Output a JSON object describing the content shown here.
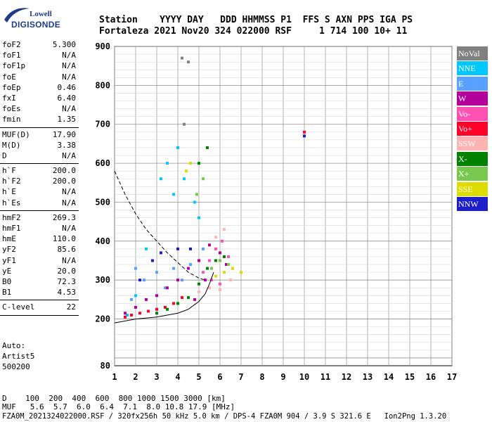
{
  "logo": {
    "line1": "Lowell",
    "line2": "DIGISONDE"
  },
  "header": {
    "row1": "Station    YYYY DAY   DDD HHMMSS P1  FFS S AXN PPS IGA PS",
    "row2": "Fortaleza 2021 Nov20 324 022000 RSF     1 714 100 10+ 11"
  },
  "params": [
    {
      "key": "foF2",
      "value": "5.300"
    },
    {
      "key": "foF1",
      "value": "N/A"
    },
    {
      "key": "foF1p",
      "value": "N/A"
    },
    {
      "key": "foE",
      "value": "N/A"
    },
    {
      "key": "foEp",
      "value": "0.46"
    },
    {
      "key": "fxI",
      "value": "6.40"
    },
    {
      "key": "foEs",
      "value": "N/A"
    },
    {
      "key": "fmin",
      "value": "1.35"
    },
    {
      "key": "MUF(D)",
      "value": "17.90"
    },
    {
      "key": "M(D)",
      "value": "3.38"
    },
    {
      "key": "D",
      "value": "N/A"
    },
    {
      "key": "h`F",
      "value": "200.0"
    },
    {
      "key": "h`F2",
      "value": "200.0"
    },
    {
      "key": "h`E",
      "value": "N/A"
    },
    {
      "key": "h`Es",
      "value": "N/A"
    },
    {
      "key": "hmF2",
      "value": "269.3"
    },
    {
      "key": "hmF1",
      "value": "N/A"
    },
    {
      "key": "hmE",
      "value": "110.0"
    },
    {
      "key": "yF2",
      "value": "85.6"
    },
    {
      "key": "yF1",
      "value": "N/A"
    },
    {
      "key": "yE",
      "value": "20.0"
    },
    {
      "key": "B0",
      "value": "72.3"
    },
    {
      "key": "B1",
      "value": "4.53"
    },
    {
      "key": "C-level",
      "value": "22"
    }
  ],
  "auto": {
    "line1": "Auto:",
    "line2": "Artist5",
    "line3": "500200"
  },
  "bottom": {
    "d_line": "D    100  200  400  600  800 1000 1500 3000 [km]",
    "muf_line": "MUF   5.6  5.7  6.0  6.4  7.1  8.0 10.8 17.9 [MHz]",
    "file_line": "FZA0M_2021324022000.RSF / 320fx256h 50 kHz 5.0 km / DPS-4 FZA0M 904 / 3.9 S 321.6 E   Ion2Png 1.3.20"
  },
  "legend": [
    {
      "label": "NoVal",
      "color": "#808080"
    },
    {
      "label": "NNE",
      "color": "#00c8ff"
    },
    {
      "label": "E",
      "color": "#5aa0ff"
    },
    {
      "label": "W",
      "color": "#b4009b"
    },
    {
      "label": "Vo-",
      "color": "#ff50b4"
    },
    {
      "label": "Vo+",
      "color": "#ff0028"
    },
    {
      "label": "SSW",
      "color": "#ffb4b4"
    },
    {
      "label": "X-",
      "color": "#008200"
    },
    {
      "label": "X+",
      "color": "#78c850"
    },
    {
      "label": "SSE",
      "color": "#dcdc00"
    },
    {
      "label": "NNW",
      "color": "#1e1ec8"
    }
  ],
  "chart_data": {
    "type": "scatter",
    "title": "",
    "xlabel": "",
    "ylabel": "",
    "xlim": [
      1,
      17
    ],
    "ylim": [
      80,
      900
    ],
    "x_ticks": [
      1,
      2,
      3,
      4,
      5,
      6,
      7,
      8,
      9,
      10,
      11,
      12,
      13,
      14,
      15,
      16,
      17
    ],
    "y_ticks": [
      80,
      200,
      300,
      400,
      500,
      600,
      700,
      800,
      900
    ],
    "grid": true,
    "legend_position": "right",
    "series": [
      {
        "name": "NoVal",
        "color": "#808080",
        "points": [
          [
            4.2,
            870
          ],
          [
            4.5,
            860
          ],
          [
            4.3,
            700
          ],
          [
            4.6,
            600
          ]
        ]
      },
      {
        "name": "NNE",
        "color": "#00c8ff",
        "points": [
          [
            3.2,
            560
          ],
          [
            3.5,
            600
          ],
          [
            4.0,
            640
          ],
          [
            4.3,
            560
          ],
          [
            4.8,
            500
          ],
          [
            5.0,
            460
          ],
          [
            3.8,
            520
          ],
          [
            2.5,
            380
          ],
          [
            2.0,
            260
          ],
          [
            1.6,
            210
          ]
        ]
      },
      {
        "name": "E",
        "color": "#5aa0ff",
        "points": [
          [
            2.0,
            330
          ],
          [
            2.4,
            300
          ],
          [
            3.0,
            320
          ],
          [
            3.4,
            280
          ],
          [
            3.8,
            330
          ],
          [
            1.8,
            250
          ],
          [
            4.2,
            300
          ],
          [
            4.6,
            340
          ],
          [
            5.2,
            380
          ]
        ]
      },
      {
        "name": "W",
        "color": "#b4009b",
        "points": [
          [
            1.5,
            215
          ],
          [
            2.0,
            230
          ],
          [
            2.5,
            250
          ],
          [
            3.0,
            260
          ],
          [
            3.5,
            280
          ],
          [
            4.0,
            300
          ],
          [
            4.5,
            330
          ],
          [
            5.0,
            350
          ],
          [
            5.5,
            390
          ],
          [
            6.0,
            370
          ],
          [
            6.3,
            340
          ],
          [
            4.8,
            250
          ],
          [
            5.3,
            300
          ]
        ]
      },
      {
        "name": "Vo-",
        "color": "#ff50b4",
        "points": [
          [
            5.2,
            320
          ],
          [
            5.5,
            350
          ],
          [
            5.8,
            380
          ],
          [
            6.1,
            400
          ],
          [
            6.4,
            360
          ],
          [
            6.6,
            330
          ],
          [
            5.6,
            300
          ],
          [
            6.0,
            290
          ]
        ]
      },
      {
        "name": "Vo+",
        "color": "#ff0028",
        "points": [
          [
            1.5,
            205
          ],
          [
            1.8,
            210
          ],
          [
            2.2,
            215
          ],
          [
            2.6,
            220
          ],
          [
            3.0,
            225
          ],
          [
            3.4,
            230
          ],
          [
            3.8,
            240
          ],
          [
            4.2,
            255
          ],
          [
            10.0,
            680
          ]
        ]
      },
      {
        "name": "SSW",
        "color": "#ffb4b4",
        "points": [
          [
            5.0,
            270
          ],
          [
            5.5,
            280
          ],
          [
            6.0,
            275
          ],
          [
            6.5,
            300
          ],
          [
            5.8,
            410
          ],
          [
            6.2,
            430
          ]
        ]
      },
      {
        "name": "X-",
        "color": "#008200",
        "points": [
          [
            3.0,
            215
          ],
          [
            3.5,
            225
          ],
          [
            4.0,
            240
          ],
          [
            4.5,
            255
          ],
          [
            5.0,
            290
          ],
          [
            5.4,
            330
          ],
          [
            5.8,
            350
          ],
          [
            6.2,
            360
          ],
          [
            5.0,
            600
          ],
          [
            5.4,
            640
          ]
        ]
      },
      {
        "name": "X+",
        "color": "#78c850",
        "points": [
          [
            5.6,
            330
          ],
          [
            6.0,
            350
          ],
          [
            6.4,
            340
          ],
          [
            5.2,
            560
          ],
          [
            4.9,
            520
          ]
        ]
      },
      {
        "name": "SSE",
        "color": "#dcdc00",
        "points": [
          [
            5.8,
            310
          ],
          [
            6.2,
            320
          ],
          [
            6.6,
            330
          ],
          [
            7.0,
            320
          ],
          [
            4.4,
            580
          ],
          [
            4.6,
            600
          ]
        ]
      },
      {
        "name": "NNW",
        "color": "#1e1ec8",
        "points": [
          [
            2.2,
            300
          ],
          [
            2.8,
            350
          ],
          [
            3.2,
            370
          ],
          [
            4.0,
            380
          ],
          [
            4.6,
            380
          ],
          [
            10.0,
            670
          ]
        ]
      }
    ],
    "curves": [
      {
        "style": "solid",
        "points": [
          [
            1.0,
            190
          ],
          [
            2.0,
            200
          ],
          [
            3.0,
            205
          ],
          [
            4.0,
            215
          ],
          [
            4.5,
            225
          ],
          [
            5.0,
            245
          ],
          [
            5.3,
            265
          ],
          [
            5.5,
            290
          ],
          [
            5.7,
            320
          ]
        ]
      },
      {
        "style": "dashed",
        "points": [
          [
            1.0,
            580
          ],
          [
            1.5,
            520
          ],
          [
            2.0,
            470
          ],
          [
            2.5,
            430
          ],
          [
            3.0,
            400
          ],
          [
            3.5,
            370
          ],
          [
            4.0,
            345
          ],
          [
            4.5,
            320
          ],
          [
            5.0,
            305
          ],
          [
            5.3,
            300
          ]
        ]
      }
    ]
  }
}
